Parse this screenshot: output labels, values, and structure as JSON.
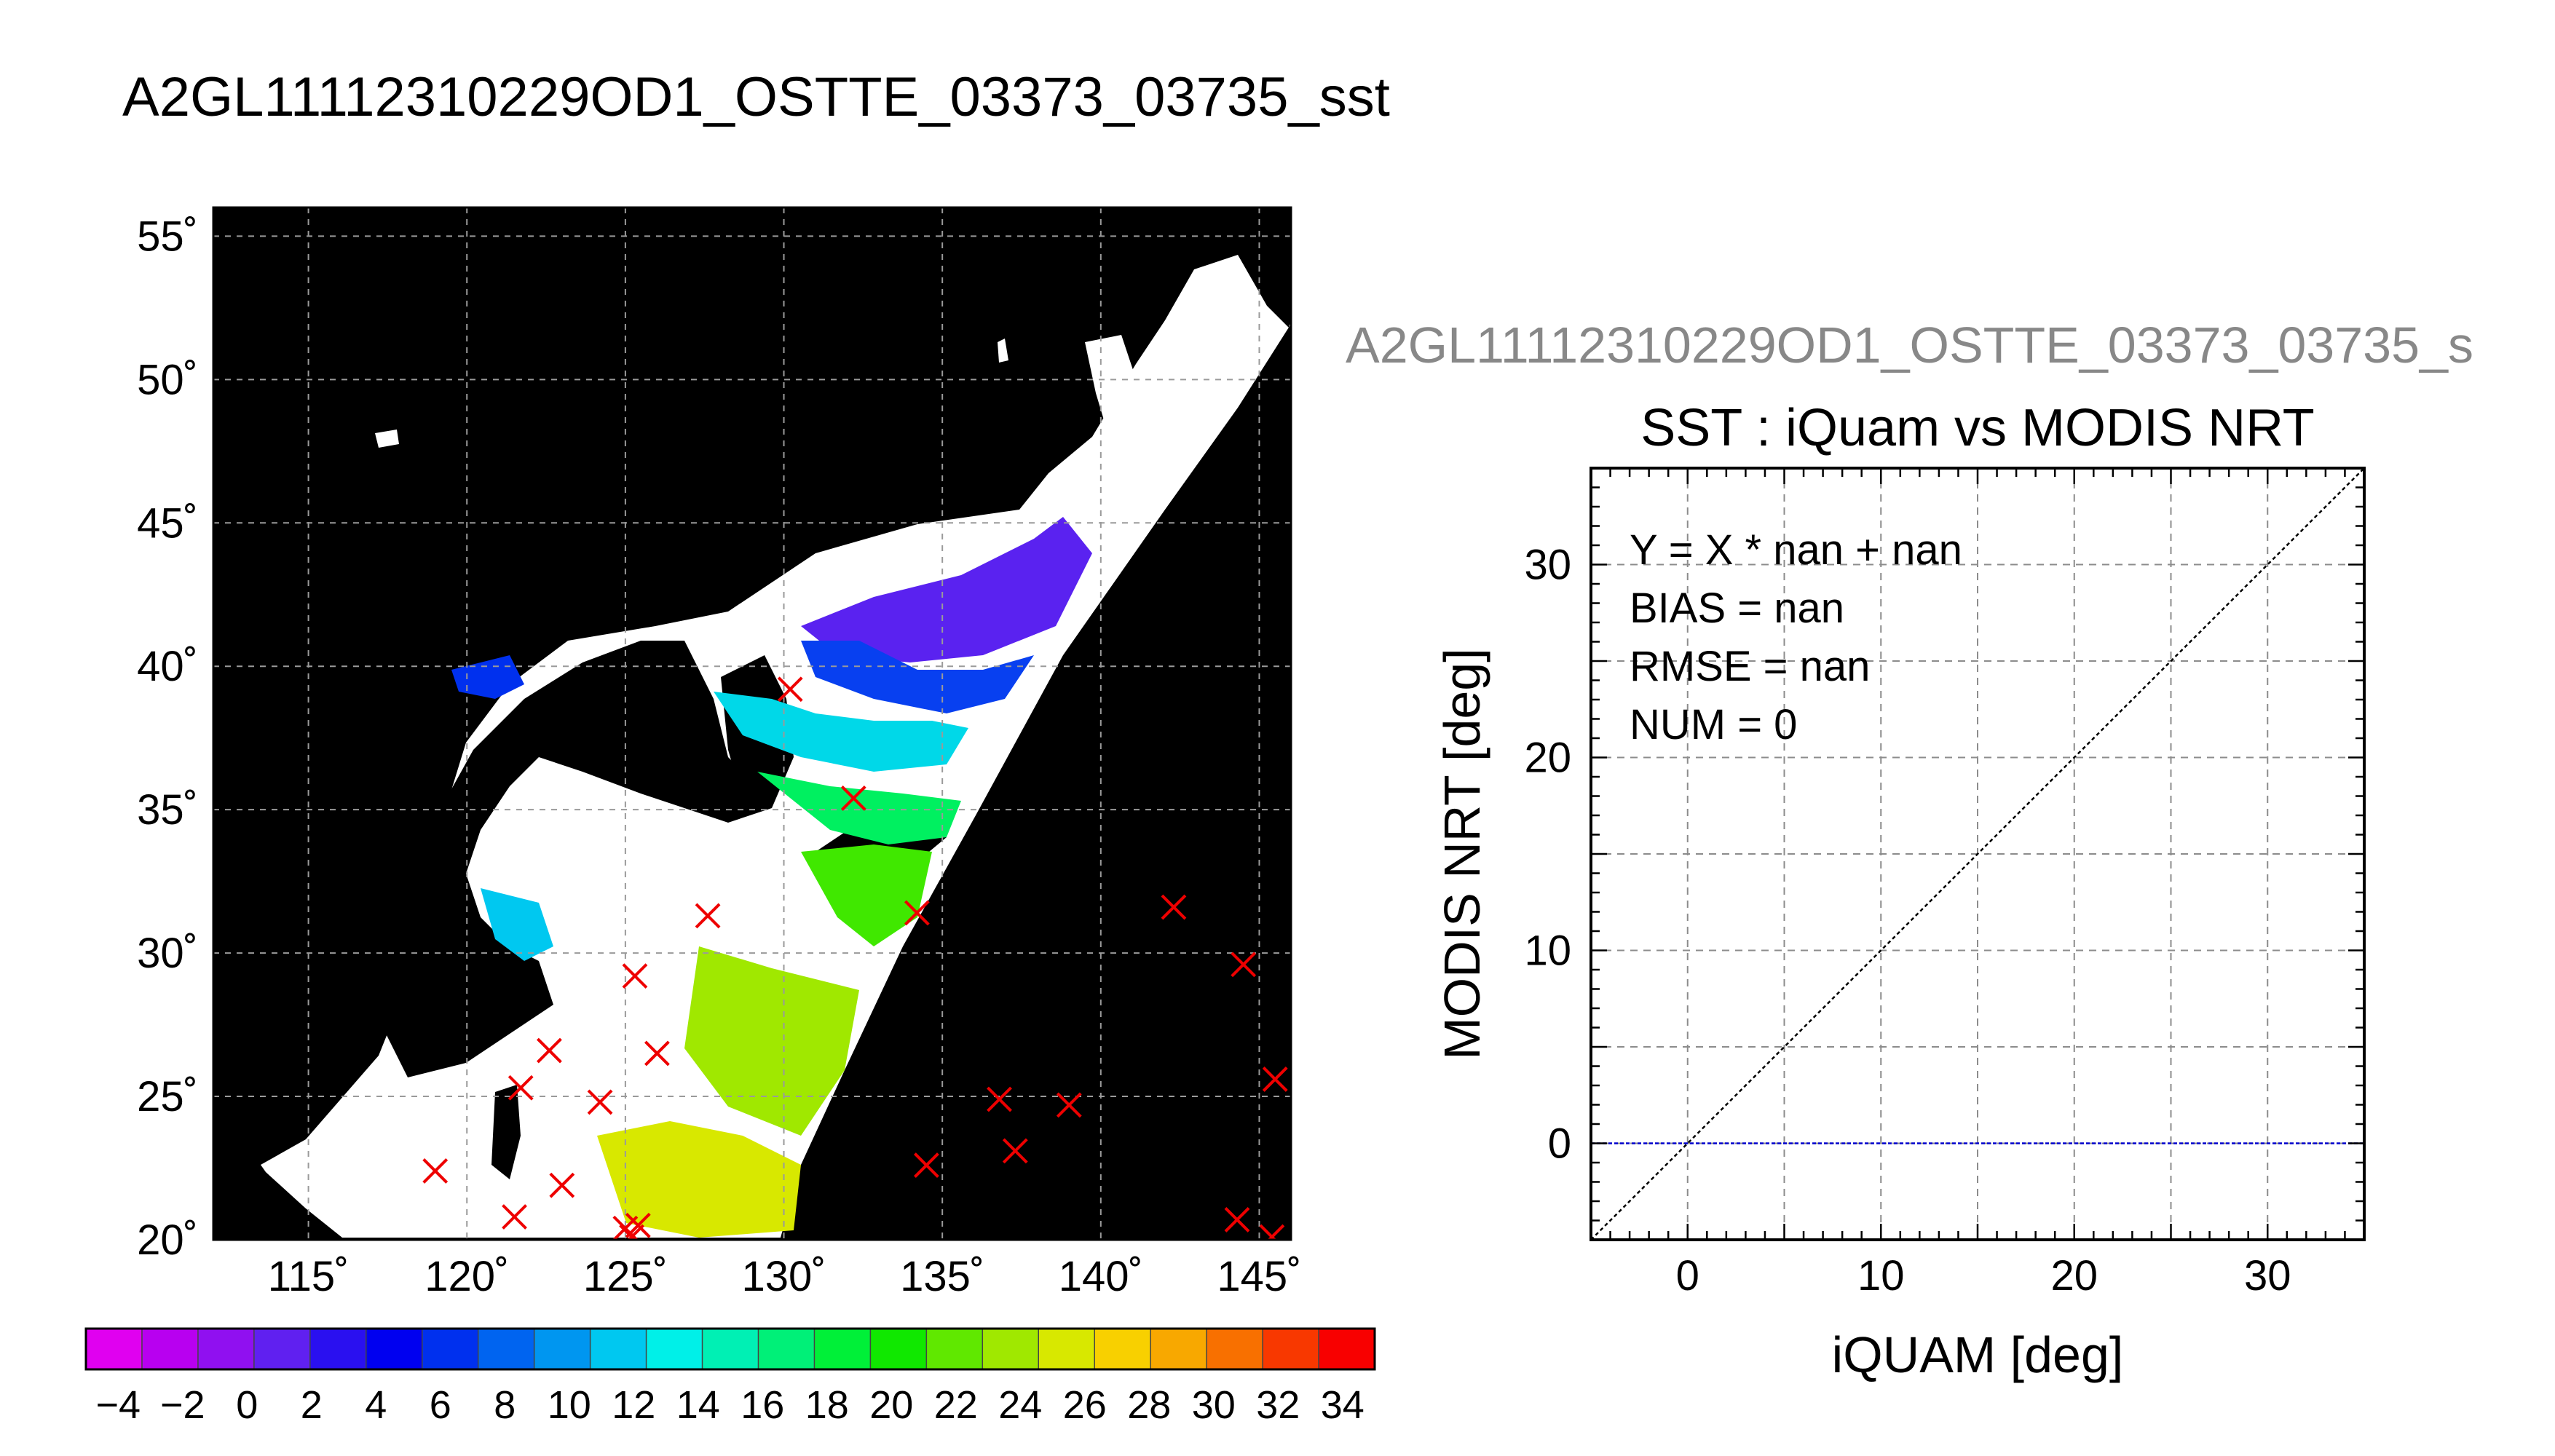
{
  "page_title": "A2GL11112310229OD1_OSTTE_03373_03735_sst",
  "chart_data": [
    {
      "type": "map",
      "lon_range": [
        112,
        146
      ],
      "lat_range": [
        20,
        56
      ],
      "x_ticks": [
        115,
        120,
        125,
        130,
        135,
        140,
        145
      ],
      "x_tick_labels": [
        "115˚",
        "120˚",
        "125˚",
        "130˚",
        "135˚",
        "140˚",
        "145˚"
      ],
      "y_ticks": [
        20,
        25,
        30,
        35,
        40,
        45,
        50,
        55
      ],
      "y_tick_labels": [
        "20˚",
        "25˚",
        "30˚",
        "35˚",
        "40˚",
        "45˚",
        "50˚",
        "55˚"
      ],
      "grid": true,
      "markers": {
        "symbol": "x",
        "color": "#ee0000",
        "lonlat": [
          [
            119.0,
            22.4
          ],
          [
            121.5,
            20.8
          ],
          [
            121.7,
            25.3
          ],
          [
            122.6,
            26.6
          ],
          [
            123.0,
            21.9
          ],
          [
            124.2,
            24.8
          ],
          [
            125.3,
            29.2
          ],
          [
            125.0,
            20.4
          ],
          [
            125.4,
            20.5
          ],
          [
            125.2,
            20.1
          ],
          [
            126.0,
            26.5
          ],
          [
            127.6,
            31.3
          ],
          [
            130.2,
            39.2
          ],
          [
            132.2,
            35.4
          ],
          [
            134.2,
            31.4
          ],
          [
            134.5,
            22.6
          ],
          [
            136.8,
            24.9
          ],
          [
            137.3,
            23.1
          ],
          [
            139.0,
            24.7
          ],
          [
            142.3,
            31.6
          ],
          [
            144.3,
            20.7
          ],
          [
            144.5,
            29.6
          ],
          [
            145.4,
            20.1
          ],
          [
            145.5,
            25.6
          ]
        ]
      },
      "colorbar": {
        "min": -5,
        "max": 35,
        "tick_labels": [
          "-4",
          "-2",
          "0",
          "2",
          "4",
          "6",
          "8",
          "10",
          "12",
          "14",
          "16",
          "18",
          "20",
          "22",
          "24",
          "26",
          "28",
          "30",
          "32",
          "34"
        ],
        "colors": [
          "#e000f0",
          "#b800f0",
          "#9010f0",
          "#6020f0",
          "#2a10f0",
          "#0000f0",
          "#0030ee",
          "#0064f0",
          "#0096f0",
          "#00c8f0",
          "#00f0e8",
          "#00f0b4",
          "#00f078",
          "#00f038",
          "#10e800",
          "#60e800",
          "#a0e800",
          "#d8e800",
          "#f8d000",
          "#f8a800",
          "#f87000",
          "#f83800",
          "#f80000"
        ]
      }
    },
    {
      "type": "scatter",
      "subtitle": "A2GL11112310229OD1_OSTTE_03373_03735_s",
      "title": "SST : iQuam vs MODIS NRT",
      "xlabel": "iQUAM [deg]",
      "ylabel": "MODIS NRT [deg]",
      "xlim": [
        -5,
        35
      ],
      "ylim": [
        -5,
        35
      ],
      "x_ticks": [
        0,
        10,
        20,
        30
      ],
      "y_ticks": [
        0,
        10,
        20,
        30
      ],
      "grid": true,
      "reference_line": "y = x",
      "zero_line": {
        "y": 0,
        "color": "#0000cc"
      },
      "points": [],
      "stats": [
        "Y = X * nan + nan",
        "BIAS = nan",
        "RMSE = nan",
        "NUM = 0"
      ]
    }
  ]
}
